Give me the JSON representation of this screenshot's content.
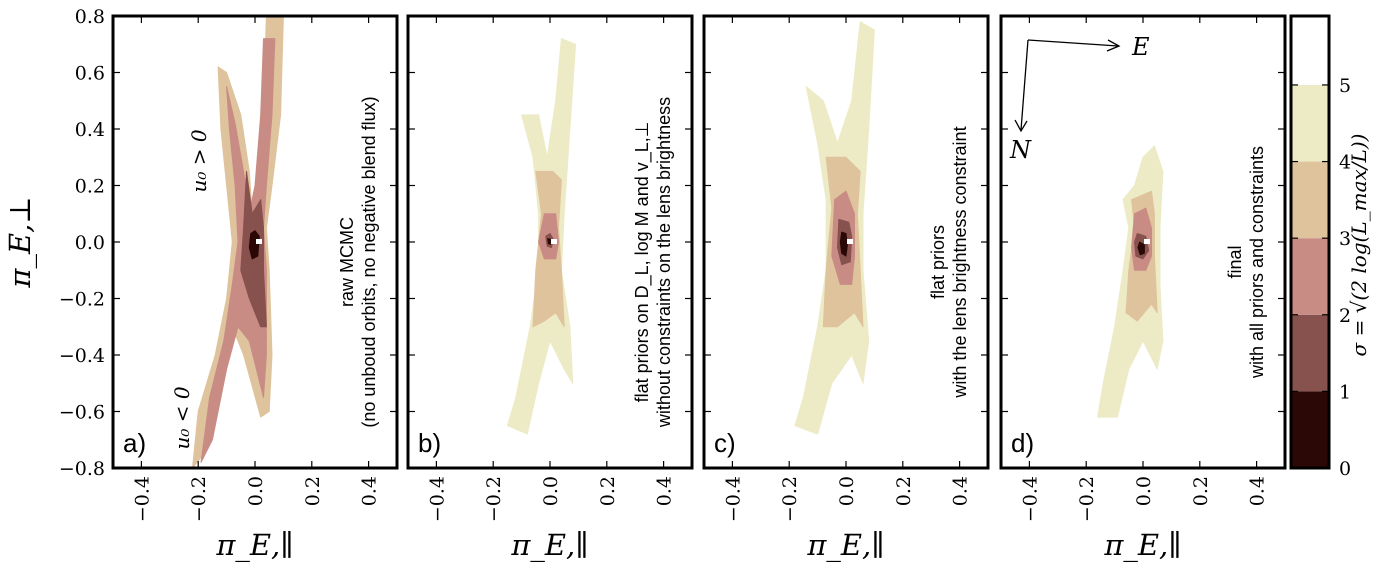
{
  "chart_data": {
    "type": "heatmap",
    "panels": [
      {
        "label": "a)",
        "annotation": [
          "raw MCMC",
          "(no unboud orbits, no negative blend flux)"
        ],
        "side_labels": [
          "u₀ > 0",
          "u₀ < 0"
        ],
        "levels": [
          {
            "sigma": 3,
            "polygon": [
              [
                -0.13,
                0.62
              ],
              [
                -0.1,
                0.6
              ],
              [
                -0.05,
                0.45
              ],
              [
                -0.02,
                0.25
              ],
              [
                -0.01,
                0.1
              ],
              [
                0.02,
                0.2
              ],
              [
                0.03,
                0.5
              ],
              [
                0.04,
                0.8
              ],
              [
                0.1,
                0.8
              ],
              [
                0.09,
                0.45
              ],
              [
                0.06,
                0.2
              ],
              [
                0.04,
                0.05
              ],
              [
                0.05,
                -0.1
              ],
              [
                0.06,
                -0.4
              ],
              [
                0.05,
                -0.6
              ],
              [
                0.02,
                -0.62
              ],
              [
                -0.04,
                -0.4
              ],
              [
                -0.08,
                -0.3
              ],
              [
                -0.12,
                -0.5
              ],
              [
                -0.18,
                -0.75
              ],
              [
                -0.22,
                -0.8
              ],
              [
                -0.2,
                -0.6
              ],
              [
                -0.14,
                -0.4
              ],
              [
                -0.1,
                -0.2
              ],
              [
                -0.08,
                0.0
              ],
              [
                -0.1,
                0.2
              ],
              [
                -0.12,
                0.4
              ]
            ]
          },
          {
            "sigma": 2,
            "polygon": [
              [
                -0.1,
                0.55
              ],
              [
                -0.07,
                0.42
              ],
              [
                -0.04,
                0.25
              ],
              [
                -0.02,
                0.1
              ],
              [
                0.0,
                0.2
              ],
              [
                0.02,
                0.45
              ],
              [
                0.03,
                0.72
              ],
              [
                0.07,
                0.72
              ],
              [
                0.06,
                0.45
              ],
              [
                0.04,
                0.2
              ],
              [
                0.03,
                0.05
              ],
              [
                0.04,
                -0.1
              ],
              [
                0.04,
                -0.4
              ],
              [
                0.03,
                -0.55
              ],
              [
                -0.02,
                -0.35
              ],
              [
                -0.06,
                -0.3
              ],
              [
                -0.1,
                -0.45
              ],
              [
                -0.15,
                -0.7
              ],
              [
                -0.19,
                -0.78
              ],
              [
                -0.16,
                -0.55
              ],
              [
                -0.11,
                -0.35
              ],
              [
                -0.08,
                -0.15
              ],
              [
                -0.06,
                0.0
              ],
              [
                -0.07,
                0.2
              ],
              [
                -0.09,
                0.4
              ]
            ]
          },
          {
            "sigma": 1,
            "polygon": [
              [
                -0.03,
                0.25
              ],
              [
                -0.01,
                0.1
              ],
              [
                0.02,
                0.15
              ],
              [
                0.03,
                0.05
              ],
              [
                0.03,
                -0.1
              ],
              [
                0.04,
                -0.3
              ],
              [
                0.02,
                -0.3
              ],
              [
                -0.02,
                -0.2
              ],
              [
                -0.05,
                -0.1
              ],
              [
                -0.04,
                0.05
              ]
            ]
          },
          {
            "sigma": 0,
            "polygon": [
              [
                -0.015,
                0.03
              ],
              [
                0.0,
                0.04
              ],
              [
                0.015,
                0.02
              ],
              [
                0.01,
                -0.05
              ],
              [
                -0.01,
                -0.06
              ],
              [
                -0.02,
                -0.02
              ]
            ]
          }
        ]
      },
      {
        "label": "b)",
        "annotation": [
          "flat priors on D_L, log M and v_L,⊥",
          "without constraints on the lens brightness"
        ],
        "side_labels": [],
        "levels": [
          {
            "sigma": 4,
            "polygon": [
              [
                -0.1,
                0.45
              ],
              [
                -0.06,
                0.3
              ],
              [
                -0.04,
                0.1
              ],
              [
                -0.04,
                -0.1
              ],
              [
                -0.07,
                -0.3
              ],
              [
                -0.12,
                -0.55
              ],
              [
                -0.15,
                -0.65
              ],
              [
                -0.08,
                -0.68
              ],
              [
                -0.04,
                -0.5
              ],
              [
                0.0,
                -0.35
              ],
              [
                0.05,
                -0.45
              ],
              [
                0.08,
                -0.5
              ],
              [
                0.07,
                -0.3
              ],
              [
                0.04,
                -0.1
              ],
              [
                0.05,
                0.1
              ],
              [
                0.07,
                0.4
              ],
              [
                0.09,
                0.7
              ],
              [
                0.04,
                0.72
              ],
              [
                0.02,
                0.5
              ],
              [
                -0.01,
                0.3
              ],
              [
                -0.04,
                0.45
              ]
            ]
          },
          {
            "sigma": 3,
            "polygon": [
              [
                -0.05,
                0.25
              ],
              [
                -0.03,
                0.1
              ],
              [
                -0.05,
                -0.1
              ],
              [
                -0.06,
                -0.3
              ],
              [
                -0.02,
                -0.28
              ],
              [
                0.02,
                -0.25
              ],
              [
                0.05,
                -0.3
              ],
              [
                0.04,
                -0.1
              ],
              [
                0.03,
                0.05
              ],
              [
                0.04,
                0.22
              ],
              [
                0.01,
                0.25
              ]
            ]
          },
          {
            "sigma": 2,
            "polygon": [
              [
                -0.02,
                0.1
              ],
              [
                0.02,
                0.1
              ],
              [
                0.03,
                0.0
              ],
              [
                0.02,
                -0.06
              ],
              [
                -0.02,
                -0.06
              ],
              [
                -0.04,
                0.0
              ]
            ]
          },
          {
            "sigma": 1,
            "polygon": [
              [
                -0.015,
                0.02
              ],
              [
                0.0,
                0.03
              ],
              [
                0.012,
                0.01
              ],
              [
                0.005,
                -0.02
              ],
              [
                -0.01,
                -0.015
              ]
            ]
          },
          {
            "sigma": 0,
            "polygon": [
              [
                -0.008,
                0.012
              ],
              [
                0.003,
                0.01
              ],
              [
                0.002,
                -0.008
              ],
              [
                -0.006,
                -0.006
              ]
            ]
          }
        ]
      },
      {
        "label": "c)",
        "annotation": [
          "flat priors",
          "with the lens brightness constraint"
        ],
        "side_labels": [],
        "levels": [
          {
            "sigma": 4,
            "polygon": [
              [
                -0.14,
                0.55
              ],
              [
                -0.1,
                0.35
              ],
              [
                -0.07,
                0.15
              ],
              [
                -0.07,
                -0.1
              ],
              [
                -0.1,
                -0.3
              ],
              [
                -0.15,
                -0.55
              ],
              [
                -0.18,
                -0.65
              ],
              [
                -0.1,
                -0.68
              ],
              [
                -0.05,
                -0.5
              ],
              [
                0.02,
                -0.4
              ],
              [
                0.06,
                -0.5
              ],
              [
                0.08,
                -0.35
              ],
              [
                0.06,
                -0.1
              ],
              [
                0.06,
                0.1
              ],
              [
                0.08,
                0.4
              ],
              [
                0.1,
                0.75
              ],
              [
                0.05,
                0.78
              ],
              [
                0.02,
                0.5
              ],
              [
                -0.03,
                0.35
              ],
              [
                -0.08,
                0.5
              ]
            ]
          },
          {
            "sigma": 3,
            "polygon": [
              [
                -0.07,
                0.3
              ],
              [
                -0.05,
                0.12
              ],
              [
                -0.07,
                -0.1
              ],
              [
                -0.08,
                -0.3
              ],
              [
                -0.03,
                -0.3
              ],
              [
                0.03,
                -0.25
              ],
              [
                0.06,
                -0.3
              ],
              [
                0.05,
                -0.1
              ],
              [
                0.04,
                0.1
              ],
              [
                0.05,
                0.25
              ],
              [
                0.0,
                0.3
              ]
            ]
          },
          {
            "sigma": 2,
            "polygon": [
              [
                -0.04,
                0.15
              ],
              [
                0.0,
                0.18
              ],
              [
                0.03,
                0.1
              ],
              [
                0.03,
                -0.05
              ],
              [
                0.02,
                -0.15
              ],
              [
                -0.02,
                -0.15
              ],
              [
                -0.05,
                -0.05
              ]
            ]
          },
          {
            "sigma": 1,
            "polygon": [
              [
                -0.025,
                0.08
              ],
              [
                0.01,
                0.07
              ],
              [
                0.02,
                0.02
              ],
              [
                0.015,
                -0.07
              ],
              [
                -0.015,
                -0.08
              ],
              [
                -0.03,
                -0.02
              ]
            ]
          },
          {
            "sigma": 0,
            "polygon": [
              [
                -0.015,
                0.035
              ],
              [
                0.0,
                0.03
              ],
              [
                0.005,
                -0.01
              ],
              [
                0.0,
                -0.05
              ],
              [
                -0.015,
                -0.04
              ],
              [
                -0.02,
                0.0
              ]
            ]
          }
        ]
      },
      {
        "label": "d)",
        "annotation": [
          "final",
          "with all priors and constraints"
        ],
        "side_labels": [],
        "levels": [
          {
            "sigma": 4,
            "polygon": [
              [
                -0.07,
                0.15
              ],
              [
                -0.05,
                0.05
              ],
              [
                -0.07,
                -0.1
              ],
              [
                -0.1,
                -0.3
              ],
              [
                -0.14,
                -0.5
              ],
              [
                -0.16,
                -0.62
              ],
              [
                -0.09,
                -0.62
              ],
              [
                -0.05,
                -0.45
              ],
              [
                0.0,
                -0.35
              ],
              [
                0.05,
                -0.45
              ],
              [
                0.07,
                -0.35
              ],
              [
                0.06,
                -0.15
              ],
              [
                0.06,
                0.05
              ],
              [
                0.07,
                0.25
              ],
              [
                0.04,
                0.34
              ],
              [
                0.0,
                0.3
              ],
              [
                -0.03,
                0.2
              ]
            ]
          },
          {
            "sigma": 3,
            "polygon": [
              [
                -0.04,
                0.15
              ],
              [
                -0.03,
                0.05
              ],
              [
                -0.05,
                -0.1
              ],
              [
                -0.06,
                -0.25
              ],
              [
                -0.02,
                -0.28
              ],
              [
                0.03,
                -0.22
              ],
              [
                0.05,
                -0.25
              ],
              [
                0.04,
                -0.05
              ],
              [
                0.04,
                0.1
              ],
              [
                0.03,
                0.18
              ]
            ]
          },
          {
            "sigma": 2,
            "polygon": [
              [
                -0.03,
                0.1
              ],
              [
                0.01,
                0.12
              ],
              [
                0.03,
                0.05
              ],
              [
                0.03,
                -0.05
              ],
              [
                0.01,
                -0.1
              ],
              [
                -0.03,
                -0.1
              ],
              [
                -0.04,
                -0.02
              ]
            ]
          },
          {
            "sigma": 1,
            "polygon": [
              [
                -0.02,
                0.03
              ],
              [
                0.01,
                0.02
              ],
              [
                0.02,
                -0.03
              ],
              [
                0.0,
                -0.06
              ],
              [
                -0.025,
                -0.05
              ],
              [
                -0.03,
                0.0
              ]
            ]
          },
          {
            "sigma": 0,
            "polygon": [
              [
                -0.012,
                0.0
              ],
              [
                0.005,
                -0.01
              ],
              [
                0.005,
                -0.04
              ],
              [
                -0.01,
                -0.045
              ],
              [
                -0.018,
                -0.02
              ]
            ]
          }
        ]
      }
    ],
    "best_fit": {
      "x": 0.0,
      "y": 0.0
    },
    "xlabel": "π_E,∥",
    "ylabel": "π_E,⊥",
    "xlim": [
      -0.5,
      0.5
    ],
    "ylim": [
      -0.8,
      0.8
    ],
    "xticks": [
      "−0.4",
      "−0.2",
      "0.0",
      "0.2",
      "0.4"
    ],
    "yticks": [
      "−0.8",
      "−0.6",
      "−0.4",
      "−0.2",
      "0.0",
      "0.2",
      "0.4",
      "0.6",
      "0.8"
    ],
    "compass": {
      "east": "E",
      "north": "N"
    },
    "colorbar": {
      "label": "σ = √(2 log(L_max/L))",
      "ticks": [
        "0",
        "1",
        "2",
        "3",
        "4",
        "5"
      ],
      "bins": [
        {
          "from": 0,
          "to": 1,
          "color": "#2b0806"
        },
        {
          "from": 1,
          "to": 2,
          "color": "#87514d"
        },
        {
          "from": 2,
          "to": 3,
          "color": "#c98c84"
        },
        {
          "from": 3,
          "to": 4,
          "color": "#dfc39d"
        },
        {
          "from": 4,
          "to": 5,
          "color": "#edebc6"
        },
        {
          "from": 5,
          "to": 6,
          "color": "#ffffff"
        }
      ],
      "max": 5.9
    },
    "grid": false
  }
}
